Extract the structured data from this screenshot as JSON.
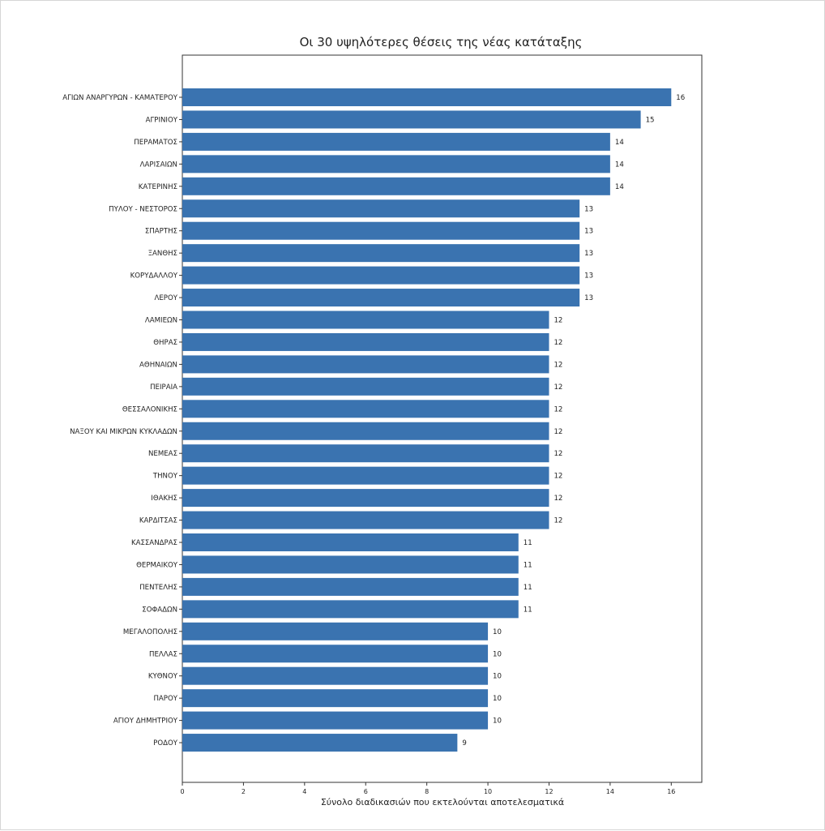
{
  "chart_data": {
    "type": "bar",
    "orientation": "horizontal",
    "title": "Οι 30 υψηλότερες θέσεις της νέας κατάταξης",
    "xlabel": "Σύνολο διαδικασιών που εκτελούνται αποτελεσματικά",
    "ylabel": "",
    "xlim": [
      0,
      17
    ],
    "xticks": [
      "0",
      "2",
      "4",
      "6",
      "8",
      "10",
      "12",
      "14",
      "16"
    ],
    "grid": false,
    "bar_color": "#3a73b0",
    "categories": [
      "ΑΓΙΩΝ ΑΝΑΡΓΥΡΩΝ - ΚΑΜΑΤΕΡΟΥ",
      "ΑΓΡΙΝΙΟΥ",
      "ΠΕΡΑΜΑΤΟΣ",
      "ΛΑΡΙΣΑΙΩΝ",
      "ΚΑΤΕΡΙΝΗΣ",
      "ΠΥΛΟΥ - ΝΕΣΤΟΡΟΣ",
      "ΣΠΑΡΤΗΣ",
      "ΞΑΝΘΗΣ",
      "ΚΟΡΥΔΑΛΛΟΥ",
      "ΛΕΡΟΥ",
      "ΛΑΜΙΕΩΝ",
      "ΘΗΡΑΣ",
      "ΑΘΗΝΑΙΩΝ",
      "ΠΕΙΡΑΙΑ",
      "ΘΕΣΣΑΛΟΝΙΚΗΣ",
      "ΝΑΞΟΥ ΚΑΙ ΜΙΚΡΩΝ ΚΥΚΛΑΔΩΝ",
      "ΝΕΜΕΑΣ",
      "ΤΗΝΟΥ",
      "ΙΘΑΚΗΣ",
      "ΚΑΡΔΙΤΣΑΣ",
      "ΚΑΣΣΑΝΔΡΑΣ",
      "ΘΕΡΜΑΙΚΟΥ",
      "ΠΕΝΤΕΛΗΣ",
      "ΣΟΦΑΔΩΝ",
      "ΜΕΓΑΛΟΠΟΛΗΣ",
      "ΠΕΛΛΑΣ",
      "ΚΥΘΝΟΥ",
      "ΠΑΡΟΥ",
      "ΑΓΙΟΥ ΔΗΜΗΤΡΙΟΥ",
      "ΡΟΔΟΥ"
    ],
    "values": [
      16,
      15,
      14,
      14,
      14,
      13,
      13,
      13,
      13,
      13,
      12,
      12,
      12,
      12,
      12,
      12,
      12,
      12,
      12,
      12,
      11,
      11,
      11,
      11,
      10,
      10,
      10,
      10,
      10,
      9
    ],
    "value_labels": [
      "16",
      "15",
      "14",
      "14",
      "14",
      "13",
      "13",
      "13",
      "13",
      "13",
      "12",
      "12",
      "12",
      "12",
      "12",
      "12",
      "12",
      "12",
      "12",
      "12",
      "11",
      "11",
      "11",
      "11",
      "10",
      "10",
      "10",
      "10",
      "10",
      "9"
    ]
  }
}
